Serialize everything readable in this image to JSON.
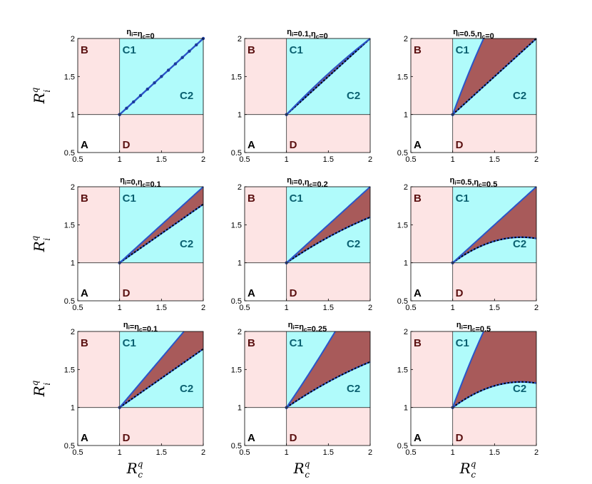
{
  "chart_data": {
    "type": "area",
    "layout": "3x3 grid",
    "xlabel": {
      "main": "R",
      "sup": "q",
      "sub": "c"
    },
    "ylabel": {
      "main": "R",
      "sup": "q",
      "sub": "i"
    },
    "xlim": [
      0.5,
      2
    ],
    "ylim": [
      0.5,
      2
    ],
    "xticks": [
      "0.5",
      "1",
      "1.5",
      "2"
    ],
    "yticks": [
      "0.5",
      "1",
      "1.5",
      "2"
    ],
    "region_labels": {
      "A": "A",
      "B": "B",
      "C1": "C1",
      "C2": "C2",
      "D": "D"
    },
    "colors": {
      "region_A": "#ffffff",
      "region_B_D": "#fde4e4",
      "region_C": "#b0fbfb",
      "coexistence": "#a85a5a",
      "upper_boundary": "#2a55c8",
      "lower_boundary": "#000000",
      "region_label_dark": "#5a1010",
      "region_label_C": "#0a6070"
    },
    "panels": [
      {
        "title_parts": [
          [
            "η",
            "i"
          ],
          "=",
          [
            "η",
            "c"
          ],
          "=0"
        ],
        "upper_slope": 1.0,
        "upper_curv": 0.0,
        "lower_slope": 1.0,
        "lower_curv": 0.0,
        "merged": true
      },
      {
        "title_parts": [
          [
            "η",
            "i"
          ],
          "=0.1,",
          [
            "η",
            "c"
          ],
          "=0"
        ],
        "upper_slope": 1.15,
        "upper_curv": -0.15,
        "lower_slope": 1.0,
        "lower_curv": 0.0,
        "merged": false
      },
      {
        "title_parts": [
          [
            "η",
            "i"
          ],
          "=0.5,",
          [
            "η",
            "c"
          ],
          "=0"
        ],
        "upper_slope": 3.0,
        "upper_curv": -0.8,
        "lower_slope": 1.0,
        "lower_curv": 0.0,
        "merged": false
      },
      {
        "title_parts": [
          [
            "η",
            "i"
          ],
          "=0,",
          [
            "η",
            "c"
          ],
          "=0.1"
        ],
        "upper_slope": 1.0,
        "upper_curv": 0.0,
        "lower_slope": 0.77,
        "lower_curv": 0.0,
        "merged": false
      },
      {
        "title_parts": [
          [
            "η",
            "i"
          ],
          "=0,",
          [
            "η",
            "c"
          ],
          "=0.2"
        ],
        "upper_slope": 1.0,
        "upper_curv": 0.0,
        "lower_slope": 0.75,
        "lower_curv": -0.15,
        "merged": false
      },
      {
        "title_parts": [
          [
            "η",
            "i"
          ],
          "=0.5,",
          [
            "η",
            "c"
          ],
          "=0.5"
        ],
        "upper_slope": 1.0,
        "upper_curv": 0.0,
        "lower_slope": 0.82,
        "lower_curv": -0.5,
        "merged": false
      },
      {
        "title_parts": [
          [
            "η",
            "i"
          ],
          "=",
          [
            "η",
            "c"
          ],
          "=0.1"
        ],
        "upper_slope": 1.3,
        "upper_curv": 0.0,
        "lower_slope": 0.77,
        "lower_curv": 0.0,
        "merged": false
      },
      {
        "title_parts": [
          [
            "η",
            "i"
          ],
          "=",
          [
            "η",
            "c"
          ],
          "=0.25"
        ],
        "upper_slope": 1.6,
        "upper_curv": 0.2,
        "lower_slope": 0.75,
        "lower_curv": -0.15,
        "merged": false
      },
      {
        "title_parts": [
          [
            "η",
            "i"
          ],
          "=",
          [
            "η",
            "c"
          ],
          "=0.5"
        ],
        "upper_slope": 3.0,
        "upper_curv": -0.8,
        "lower_slope": 0.82,
        "lower_curv": -0.5,
        "merged": false
      }
    ]
  }
}
